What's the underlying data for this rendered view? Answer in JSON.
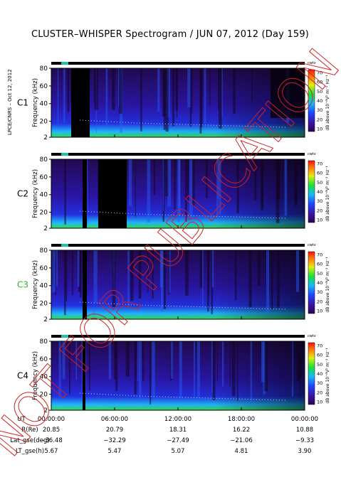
{
  "title": "CLUSTER–WHISPER Spectrogram / JUN 07, 2012 (Day 159)",
  "side_credit": "LPCE/CNRS – Oct 12, 2012",
  "watermark": "NOT FOR PUBLICATION",
  "colorbar": {
    "label": "dB above 10⁻⁸V² m⁻² Hz⁻¹",
    "ticks": [
      "70",
      "60",
      "50",
      "40",
      "30",
      "20",
      "10"
    ],
    "tag": "cwtv"
  },
  "colors": {
    "background": "#000000",
    "low": "#2a0a55",
    "mid": "#2828d8",
    "cyan": "#20c8ff",
    "green": "#30e050"
  },
  "time_labels": [
    "00:00:00",
    "06:00:00",
    "12:00:00",
    "18:00:00",
    "00:00:00"
  ],
  "ephemeris": {
    "UT": [
      "00:00:00",
      "06:00:00",
      "12:00:00",
      "18:00:00",
      "00:00:00"
    ],
    "R(Re)": [
      "20.85",
      "20.79",
      "18.31",
      "16.22",
      "10.88"
    ],
    "Lat_gse(deg)": [
      "−36.48",
      "−32.29",
      "−27.49",
      "−21.06",
      "−9.33"
    ],
    "LT_gse(h)": [
      "5.67",
      "5.47",
      "5.07",
      "4.81",
      "3.90"
    ]
  },
  "chart_data": [
    {
      "type": "heatmap",
      "panel": "C1",
      "ylabel": "Frequency (kHz)",
      "yticks": [
        2,
        20,
        40,
        60,
        80
      ],
      "ylim": [
        2,
        80
      ],
      "xlim": [
        "00:00:00",
        "00:00:00"
      ],
      "label_color": "#000000"
    },
    {
      "type": "heatmap",
      "panel": "C2",
      "ylabel": "Frequency (kHz)",
      "yticks": [
        2,
        20,
        40,
        60,
        80
      ],
      "ylim": [
        2,
        80
      ],
      "xlim": [
        "00:00:00",
        "00:00:00"
      ],
      "label_color": "#000000"
    },
    {
      "type": "heatmap",
      "panel": "C3",
      "ylabel": "Frequency (kHz)",
      "yticks": [
        2,
        20,
        40,
        60,
        80
      ],
      "ylim": [
        2,
        80
      ],
      "xlim": [
        "00:00:00",
        "00:00:00"
      ],
      "label_color": "#22bb22"
    },
    {
      "type": "heatmap",
      "panel": "C4",
      "ylabel": "Frequency (kHz)",
      "yticks": [
        2,
        20,
        40,
        60,
        80
      ],
      "ylim": [
        2,
        80
      ],
      "xlim": [
        "00:00:00",
        "00:00:00"
      ],
      "label_color": "#000000"
    }
  ]
}
